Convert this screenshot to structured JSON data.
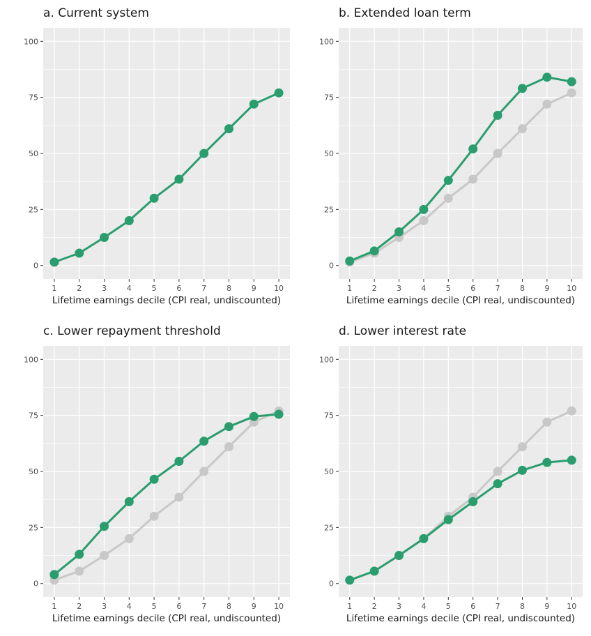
{
  "colors": {
    "panel_bg": "#ebebeb",
    "grid": "#ffffff",
    "tick": "#333333",
    "scenario": "#2a9d6e",
    "baseline": "#c8c8c8"
  },
  "chart_data": [
    {
      "type": "line",
      "title": "a. Current system",
      "xlabel": "Lifetime earnings decile (CPI real, undiscounted)",
      "ylabel": "",
      "categories": [
        "1",
        "2",
        "3",
        "4",
        "5",
        "6",
        "7",
        "8",
        "9",
        "10"
      ],
      "ylim": [
        0,
        100
      ],
      "yticks": [
        "0",
        "25",
        "50",
        "75",
        "100"
      ],
      "grid": true,
      "series": [
        {
          "role": "scenario",
          "values": [
            1.5,
            5.5,
            12.5,
            20,
            30,
            38.5,
            50,
            61,
            72,
            77
          ]
        }
      ]
    },
    {
      "type": "line",
      "title": "b. Extended loan term",
      "xlabel": "Lifetime earnings decile (CPI real, undiscounted)",
      "ylabel": "",
      "categories": [
        "1",
        "2",
        "3",
        "4",
        "5",
        "6",
        "7",
        "8",
        "9",
        "10"
      ],
      "ylim": [
        0,
        100
      ],
      "yticks": [
        "0",
        "25",
        "50",
        "75",
        "100"
      ],
      "grid": true,
      "series": [
        {
          "role": "baseline",
          "values": [
            1.5,
            5.5,
            12.5,
            20,
            30,
            38.5,
            50,
            61,
            72,
            77
          ]
        },
        {
          "role": "scenario",
          "values": [
            2,
            6.5,
            15,
            25,
            38,
            52,
            67,
            79,
            84,
            82
          ]
        }
      ]
    },
    {
      "type": "line",
      "title": "c. Lower repayment threshold",
      "xlabel": "Lifetime earnings decile (CPI real, undiscounted)",
      "ylabel": "",
      "categories": [
        "1",
        "2",
        "3",
        "4",
        "5",
        "6",
        "7",
        "8",
        "9",
        "10"
      ],
      "ylim": [
        0,
        100
      ],
      "yticks": [
        "0",
        "25",
        "50",
        "75",
        "100"
      ],
      "grid": true,
      "series": [
        {
          "role": "baseline",
          "values": [
            1.5,
            5.5,
            12.5,
            20,
            30,
            38.5,
            50,
            61,
            72,
            77
          ]
        },
        {
          "role": "scenario",
          "values": [
            4,
            13,
            25.5,
            36.5,
            46.5,
            54.5,
            63.5,
            70,
            74.5,
            75.5
          ]
        }
      ]
    },
    {
      "type": "line",
      "title": "d. Lower interest rate",
      "xlabel": "Lifetime earnings decile (CPI real, undiscounted)",
      "ylabel": "",
      "categories": [
        "1",
        "2",
        "3",
        "4",
        "5",
        "6",
        "7",
        "8",
        "9",
        "10"
      ],
      "ylim": [
        0,
        100
      ],
      "yticks": [
        "0",
        "25",
        "50",
        "75",
        "100"
      ],
      "grid": true,
      "series": [
        {
          "role": "baseline",
          "values": [
            1.5,
            5.5,
            12.5,
            20,
            30,
            38.5,
            50,
            61,
            72,
            77
          ]
        },
        {
          "role": "scenario",
          "values": [
            1.5,
            5.5,
            12.5,
            20,
            28.5,
            36.5,
            44.5,
            50.5,
            54,
            55
          ]
        }
      ]
    }
  ]
}
